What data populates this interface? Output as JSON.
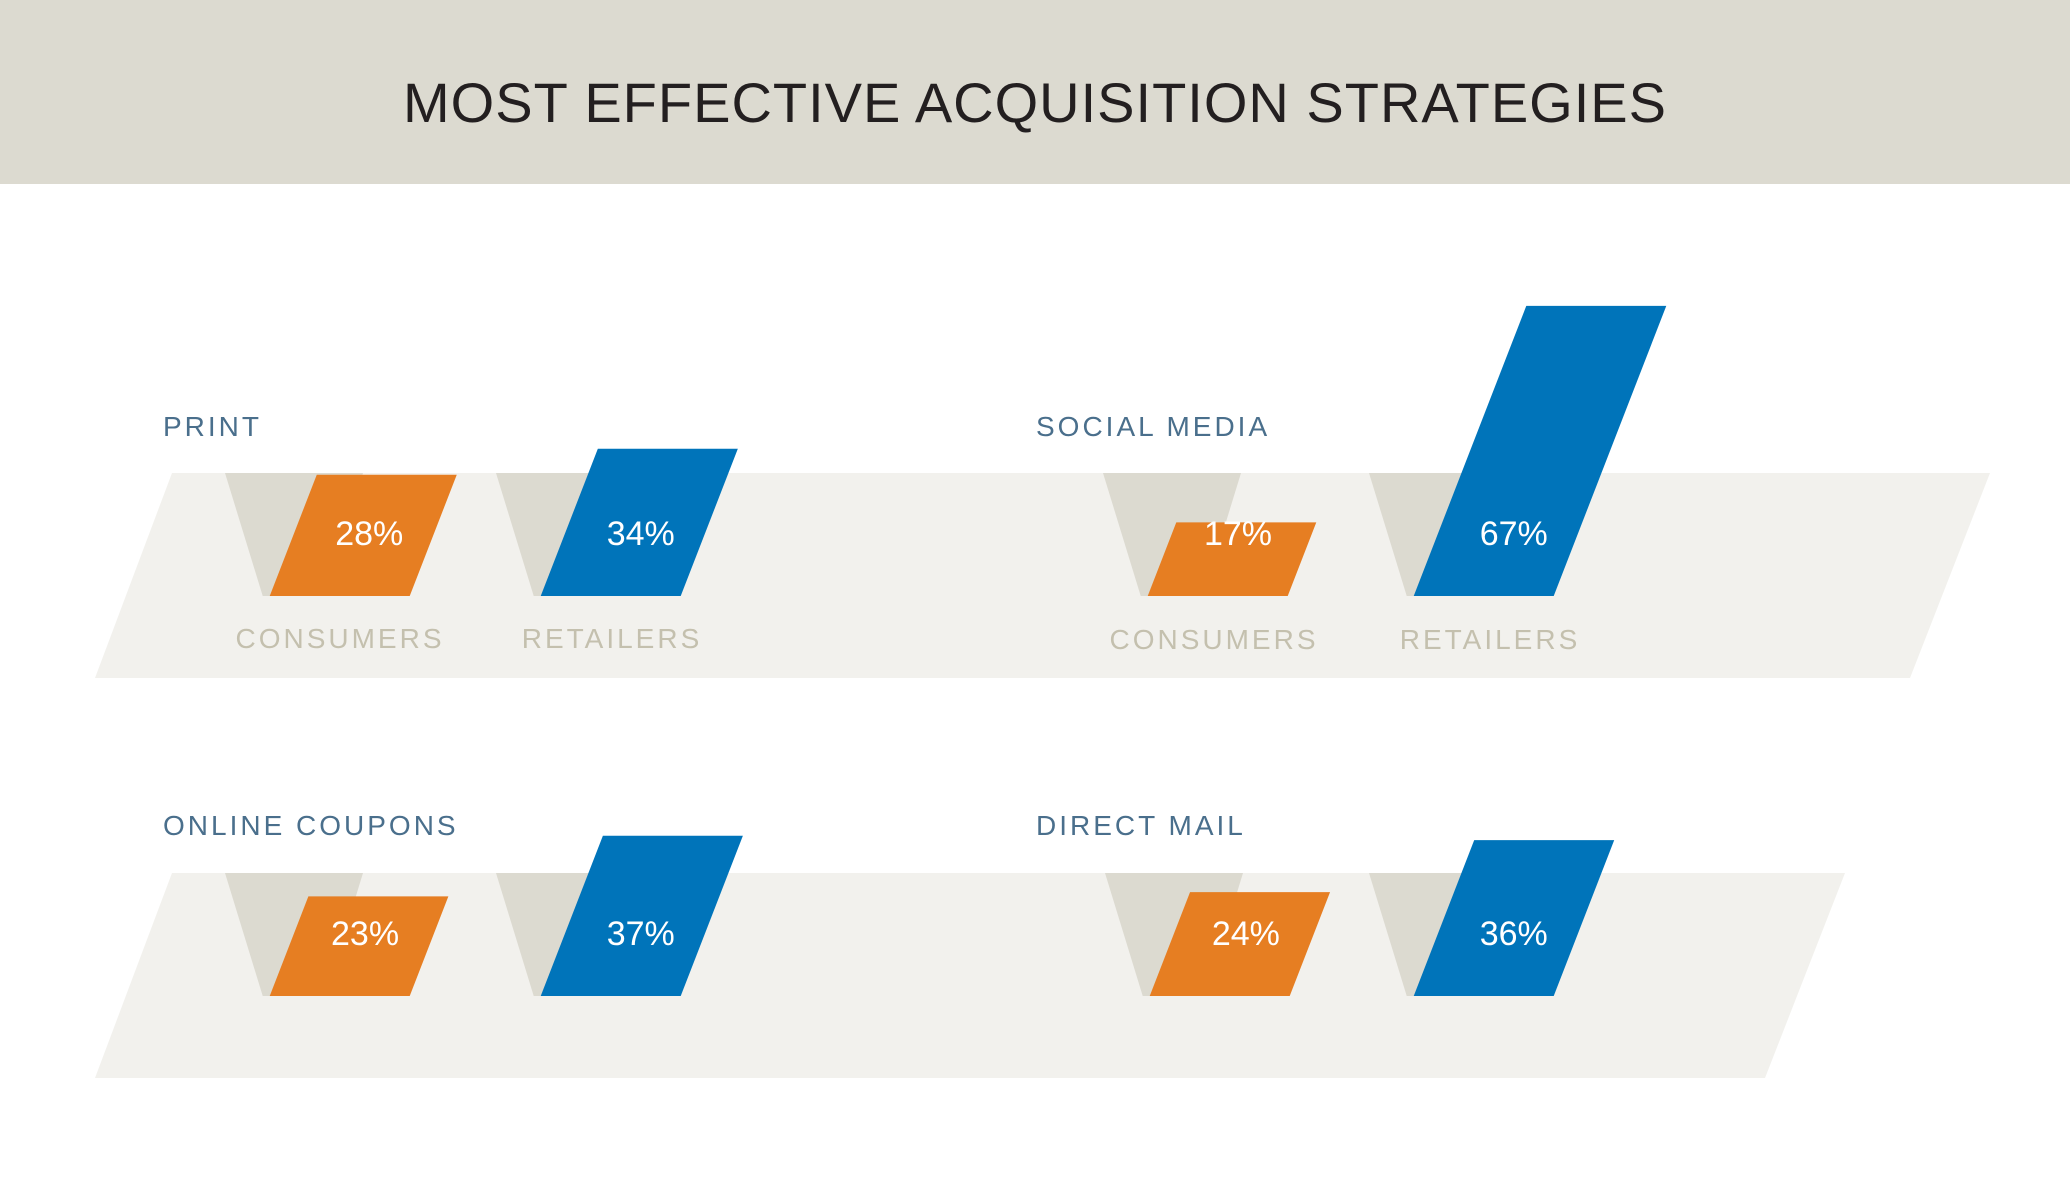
{
  "title": "MOST EFFECTIVE ACQUISITION STRATEGIES",
  "colors": {
    "header_band": "#dcdad0",
    "shelf": "#f2f1ed",
    "slot": "#dcdad0",
    "consumers": "#e67e22",
    "retailers": "#0074ba",
    "category_label": "#4a6f8c",
    "series_label": "#c4c0ae"
  },
  "chart_data": {
    "type": "bar",
    "title": "MOST EFFECTIVE ACQUISITION STRATEGIES",
    "xlabel": "",
    "ylabel": "",
    "ylim": [
      0,
      100
    ],
    "grid": false,
    "legend": "below each bar pair",
    "value_suffix": "%",
    "series": [
      {
        "name": "CONSUMERS",
        "color": "#e67e22"
      },
      {
        "name": "RETAILERS",
        "color": "#0074ba"
      }
    ],
    "categories": [
      "PRINT",
      "SOCIAL MEDIA",
      "ONLINE COUPONS",
      "DIRECT MAIL"
    ],
    "panels": [
      {
        "category": "PRINT",
        "values": [
          28,
          34
        ],
        "labels": [
          "28%",
          "34%"
        ],
        "series_labels": [
          "CONSUMERS",
          "RETAILERS"
        ]
      },
      {
        "category": "SOCIAL MEDIA",
        "values": [
          17,
          67
        ],
        "labels": [
          "17%",
          "67%"
        ],
        "series_labels": [
          "CONSUMERS",
          "RETAILERS"
        ]
      },
      {
        "category": "ONLINE COUPONS",
        "values": [
          23,
          37
        ],
        "labels": [
          "23%",
          "37%"
        ],
        "series_labels": []
      },
      {
        "category": "DIRECT MAIL",
        "values": [
          24,
          36
        ],
        "labels": [
          "24%",
          "36%"
        ],
        "series_labels": []
      }
    ]
  }
}
